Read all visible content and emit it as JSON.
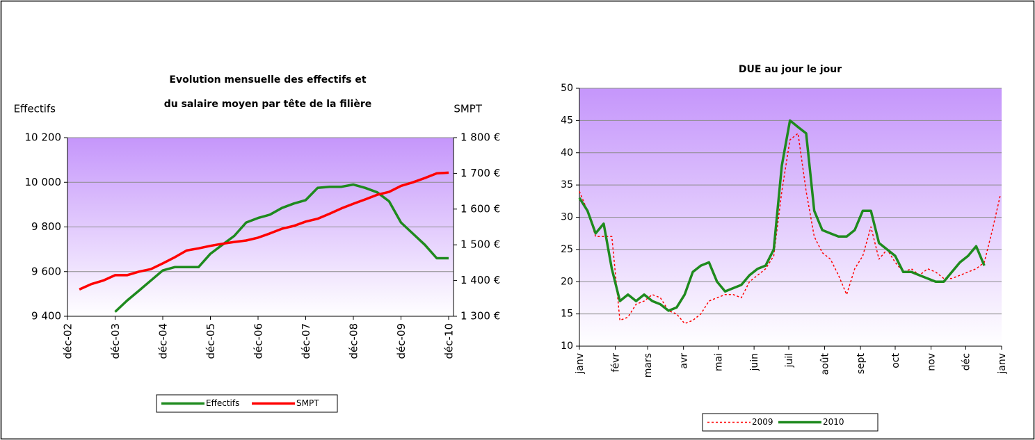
{
  "chart_data": [
    {
      "type": "line",
      "title": [
        "Evolution mensuelle des effectifs et",
        "du salaire moyen par tête de la filière"
      ],
      "y_label": "Effectifs",
      "y2_label": "SMPT",
      "categories": [
        "déc-02",
        null,
        null,
        null,
        "déc-03",
        null,
        null,
        null,
        "déc-04",
        null,
        null,
        null,
        "déc-05",
        null,
        null,
        null,
        "déc-06",
        null,
        null,
        null,
        "déc-07",
        null,
        null,
        null,
        "déc-08",
        null,
        null,
        null,
        "déc-09",
        null,
        null,
        null,
        "déc-10"
      ],
      "series": [
        {
          "name": "Effectifs",
          "color": "#1e8a1e",
          "line_style": "solid",
          "values": [
            null,
            null,
            null,
            null,
            9420,
            9470,
            9515,
            9560,
            9605,
            9620,
            9620,
            9620,
            9680,
            9720,
            9760,
            9820,
            9840,
            9855,
            9885,
            9905,
            9920,
            9975,
            9980,
            9980,
            9990,
            9975,
            9955,
            9915,
            9820,
            9770,
            9720,
            9660,
            9660
          ]
        },
        {
          "name": "SMPT",
          "color": "#ff0000",
          "line_style": "solid",
          "axis": "y2",
          "values": [
            null,
            1375,
            1390,
            1400,
            1415,
            1415,
            1425,
            1432,
            1448,
            1465,
            1484,
            1490,
            1497,
            1503,
            1508,
            1512,
            1520,
            1532,
            1545,
            1553,
            1565,
            1573,
            1587,
            1602,
            1615,
            1627,
            1640,
            1648,
            1665,
            1675,
            1687,
            1700,
            1702
          ]
        }
      ],
      "ylim": [
        9400,
        10200
      ],
      "yticks": [
        {
          "value": 9400,
          "label": "9 400"
        },
        {
          "value": 9600,
          "label": "9 600"
        },
        {
          "value": 9800,
          "label": "9 800"
        },
        {
          "value": 10000,
          "label": "10 000"
        },
        {
          "value": 10200,
          "label": "10 200"
        }
      ],
      "y2lim": [
        1300,
        1800
      ],
      "y2ticks": [
        {
          "value": 1300,
          "label": "1 300 €"
        },
        {
          "value": 1400,
          "label": "1 400 €"
        },
        {
          "value": 1500,
          "label": "1 500 €"
        },
        {
          "value": 1600,
          "label": "1 600 €"
        },
        {
          "value": 1700,
          "label": "1 700 €"
        },
        {
          "value": 1800,
          "label": "1 800 €"
        }
      ],
      "grid": true,
      "legend": "bottom"
    },
    {
      "type": "line",
      "title": "DUE au jour le jour",
      "x": [
        0,
        7,
        14,
        21,
        28,
        35,
        42,
        49,
        56,
        63,
        70,
        77,
        84,
        91,
        98,
        105,
        112,
        119,
        126,
        133,
        140,
        147,
        154,
        161,
        168,
        175,
        182,
        189,
        196,
        203,
        210,
        217,
        224,
        231,
        238,
        245,
        252,
        259,
        266,
        273,
        280,
        287,
        294,
        301,
        308,
        315,
        322,
        329,
        336,
        343,
        350,
        357,
        364
      ],
      "series": [
        {
          "name": "2009",
          "color": "#ff0000",
          "line_style": "dashed",
          "values": [
            34,
            31,
            27,
            27,
            27,
            14,
            14.5,
            16.5,
            17,
            18,
            17.5,
            15.5,
            15,
            13.5,
            14,
            15,
            17,
            17.5,
            18,
            18,
            17.5,
            20,
            21,
            22,
            24,
            34,
            42,
            43,
            34,
            27,
            24.5,
            23.5,
            21,
            18,
            22,
            24,
            28.5,
            23.5,
            25,
            23,
            21.5,
            22,
            21,
            22,
            21.5,
            20.5,
            20.5,
            21,
            21.5,
            22,
            23,
            28,
            33.5
          ]
        },
        {
          "name": "2010",
          "color": "#1e8a1e",
          "line_style": "solid",
          "values": [
            33,
            31,
            27.5,
            29,
            22,
            17,
            18,
            17,
            18,
            17,
            16.5,
            15.5,
            16,
            18,
            21.5,
            22.5,
            23,
            20,
            18.5,
            19,
            19.5,
            21,
            22,
            22.5,
            25,
            38,
            45,
            44,
            43,
            31,
            28,
            27.5,
            27,
            27,
            28,
            31,
            31,
            26,
            25,
            24,
            21.5,
            21.5,
            21,
            20.5,
            20,
            20,
            21.5,
            23,
            24,
            25.5,
            22.5,
            null,
            null
          ]
        }
      ],
      "xlim": [
        0,
        365
      ],
      "xticks": [
        {
          "value": 0,
          "label": "janv"
        },
        {
          "value": 31,
          "label": "févr"
        },
        {
          "value": 59,
          "label": "mars"
        },
        {
          "value": 90,
          "label": "avr"
        },
        {
          "value": 120,
          "label": "mai"
        },
        {
          "value": 151,
          "label": "juin"
        },
        {
          "value": 181,
          "label": "juil"
        },
        {
          "value": 212,
          "label": "août"
        },
        {
          "value": 243,
          "label": "sept"
        },
        {
          "value": 273,
          "label": "oct"
        },
        {
          "value": 304,
          "label": "nov"
        },
        {
          "value": 334,
          "label": "déc"
        },
        {
          "value": 365,
          "label": "janv"
        }
      ],
      "ylim": [
        10,
        50
      ],
      "yticks": [
        10,
        15,
        20,
        25,
        30,
        35,
        40,
        45,
        50
      ],
      "grid": true,
      "legend": "bottom"
    }
  ]
}
